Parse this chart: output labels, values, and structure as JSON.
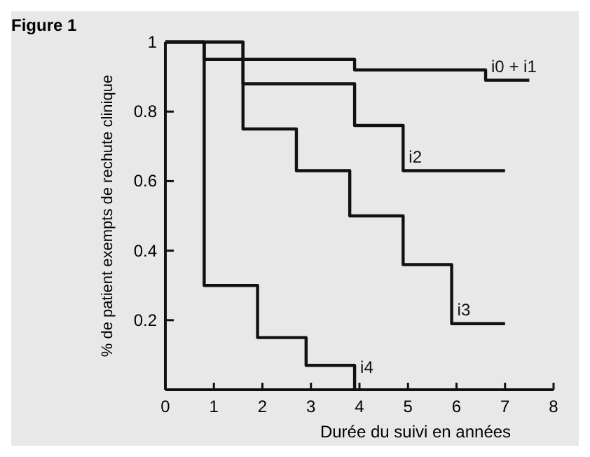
{
  "chart_data": {
    "type": "step",
    "title": "Figure 1",
    "xlabel": "Durée du suivi en années",
    "ylabel": "% de patient exempts de rechute clinique",
    "xlim": [
      0,
      8
    ],
    "xticks": [
      0,
      1,
      2,
      3,
      4,
      5,
      6,
      7,
      8
    ],
    "ylim": [
      0,
      1
    ],
    "yticks": [
      0.2,
      0.4,
      0.6,
      0.8,
      1
    ],
    "grid": false,
    "line_style": "solid",
    "series": [
      {
        "name": "i0 + i1",
        "color": "#111111",
        "x": [
          0,
          0.8,
          3.9,
          6.6,
          7.5
        ],
        "values": [
          1,
          0.95,
          0.92,
          0.89,
          0.89
        ]
      },
      {
        "name": "i2",
        "color": "#111111",
        "x": [
          0,
          1.6,
          3.9,
          4.9,
          7
        ],
        "values": [
          1,
          0.88,
          0.76,
          0.63,
          0.63
        ]
      },
      {
        "name": "i3",
        "color": "#111111",
        "x": [
          0,
          1.6,
          2.7,
          3.8,
          4.9,
          5.9,
          7
        ],
        "values": [
          1,
          0.75,
          0.63,
          0.5,
          0.36,
          0.19,
          0.19
        ]
      },
      {
        "name": "i4",
        "color": "#111111",
        "x": [
          0,
          0.8,
          1.9,
          2.9,
          3.9
        ],
        "values": [
          1,
          0.3,
          0.15,
          0.07,
          0
        ]
      }
    ]
  }
}
